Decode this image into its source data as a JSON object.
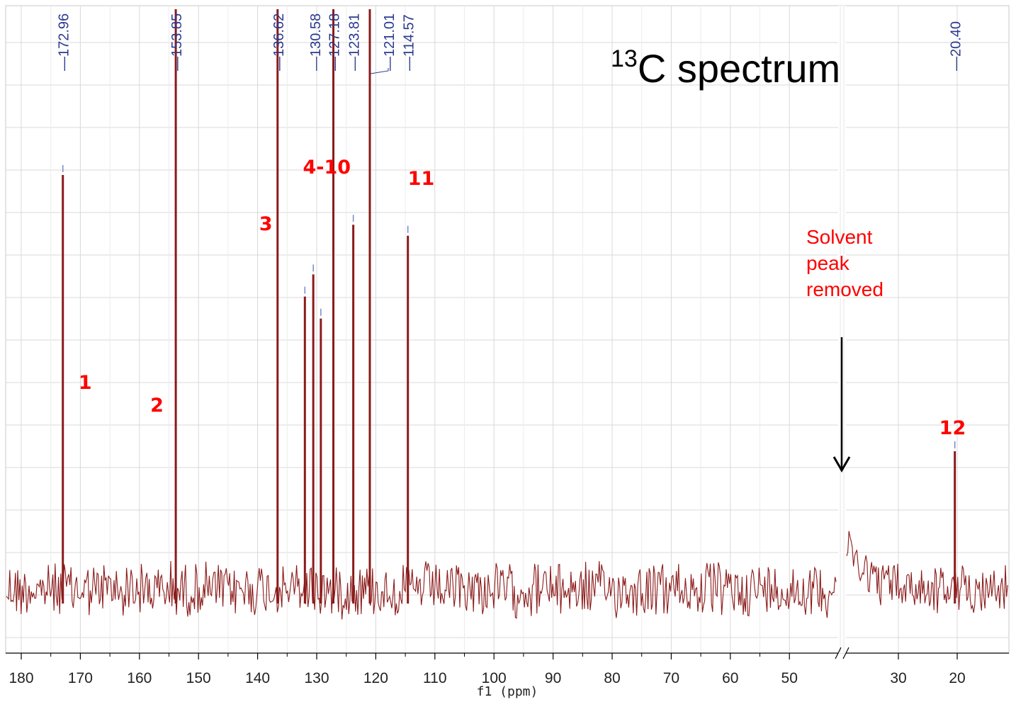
{
  "chart_data": {
    "type": "line",
    "title_sup": "13",
    "title_main": "C spectrum",
    "xlabel": "f1 (ppm)",
    "x_reversed": true,
    "xlim": [
      182,
      12
    ],
    "axis_break": [
      45,
      36
    ],
    "x_ticks": [
      "180",
      "170",
      "160",
      "150",
      "140",
      "130",
      "120",
      "110",
      "100",
      "90",
      "80",
      "70",
      "60",
      "50",
      "30",
      "20"
    ],
    "grid": true,
    "peak_labels": [
      "172.96",
      "153.85",
      "136.62",
      "130.58",
      "127.18",
      "123.81",
      "121.01",
      "114.57",
      "20.40"
    ],
    "peaks": [
      {
        "ppm": 172.96,
        "height": 0.75
      },
      {
        "ppm": 153.85,
        "height": 1.05
      },
      {
        "ppm": 136.62,
        "height": 1.05
      },
      {
        "ppm": 132.0,
        "height": 0.53
      },
      {
        "ppm": 130.58,
        "height": 0.57
      },
      {
        "ppm": 129.3,
        "height": 0.49
      },
      {
        "ppm": 127.18,
        "height": 1.05
      },
      {
        "ppm": 123.81,
        "height": 0.66
      },
      {
        "ppm": 121.01,
        "height": 1.05
      },
      {
        "ppm": 114.57,
        "height": 0.64
      },
      {
        "ppm": 20.4,
        "height": 0.25
      }
    ],
    "assignments": [
      {
        "label": "1",
        "ppm": 172.96
      },
      {
        "label": "2",
        "ppm": 153.85
      },
      {
        "label": "3",
        "ppm": 136.62
      },
      {
        "label": "4-10",
        "ppm": 128.5
      },
      {
        "label": "11",
        "ppm": 114.57
      },
      {
        "label": "12",
        "ppm": 20.4
      }
    ],
    "annotation_lines": [
      "Solvent",
      "peak",
      "removed"
    ],
    "colors": {
      "spectrum": "#8b1a1a",
      "peak_label": "#2b3a8f",
      "annotation": "#ff0000",
      "grid": "#d8d8d8"
    }
  }
}
